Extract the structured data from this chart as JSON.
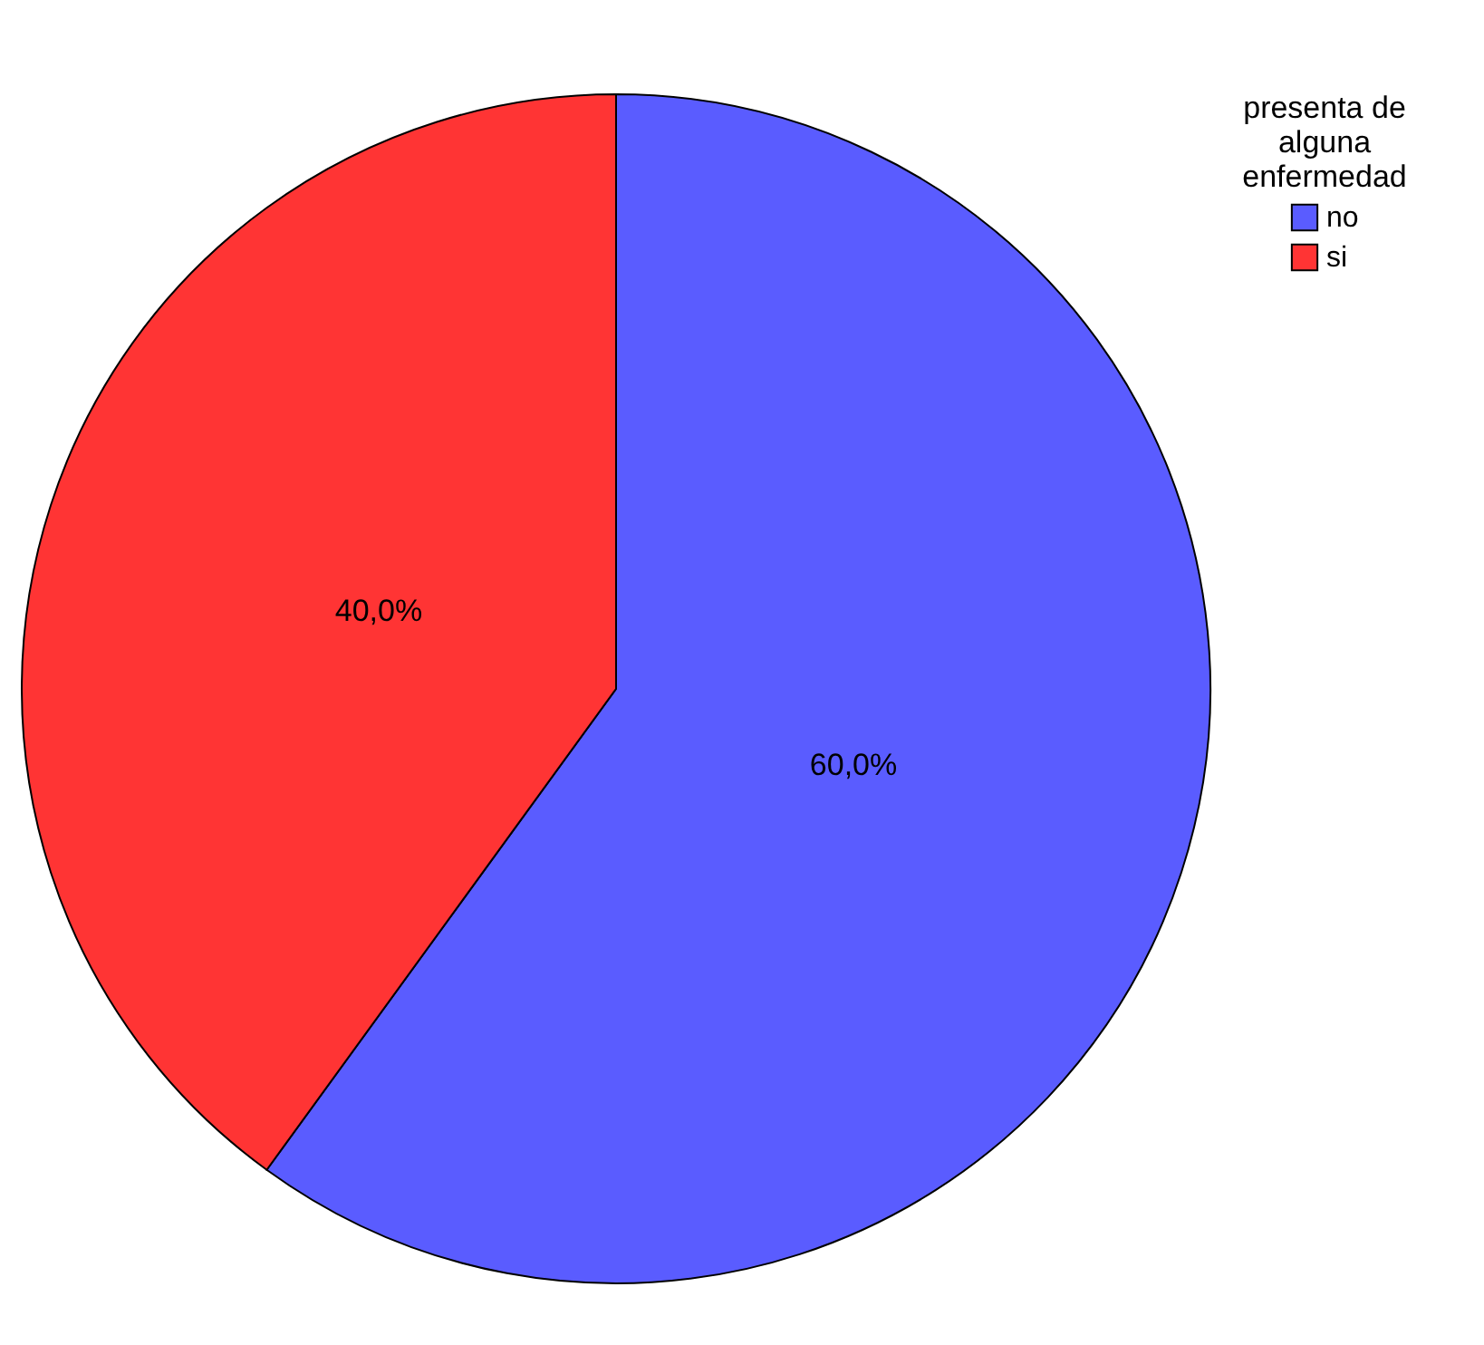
{
  "chart_data": {
    "type": "pie",
    "legend_title": "presenta de alguna enfermedad",
    "legend": "top right",
    "categories": [
      "no",
      "si"
    ],
    "values": [
      60,
      40
    ],
    "colors": [
      "#5a5cff",
      "#ff3434"
    ],
    "value_labels": [
      "60,0%",
      "40,0%"
    ]
  }
}
